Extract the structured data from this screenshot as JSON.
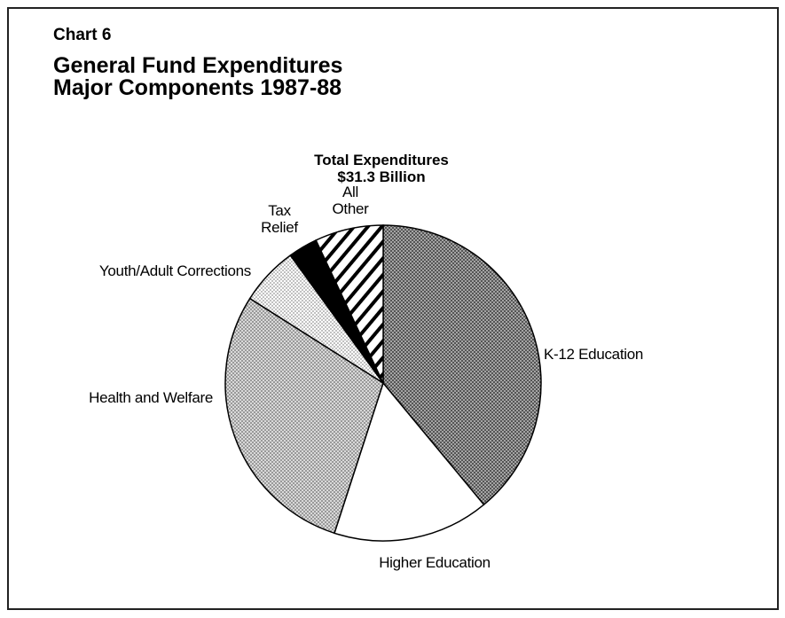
{
  "chart_data": {
    "type": "pie",
    "label": "Chart 6",
    "title": "General Fund Expenditures\nMajor Components 1987-88",
    "subtitle": "Total Expenditures\n$31.3 Billion",
    "categories": [
      "K-12 Education",
      "Higher Education",
      "Health and Welfare",
      "Youth/Adult Corrections",
      "Tax\nRelief",
      "All\nOther"
    ],
    "values": [
      39,
      16,
      29,
      6,
      3,
      7
    ],
    "fills": [
      "dense-dots",
      "white",
      "medium-dots",
      "light-dots",
      "black",
      "stripes"
    ]
  }
}
